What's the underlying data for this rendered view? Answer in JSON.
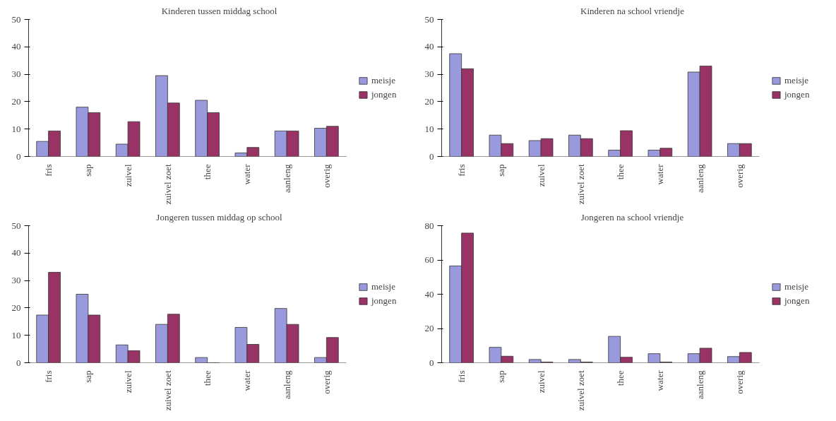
{
  "chart_data": [
    {
      "type": "bar",
      "title": "Kinderen tussen middag school",
      "categories": [
        "fris",
        "sap",
        "zuivel",
        "zuivel zoet",
        "thee",
        "water",
        "aanleng",
        "overig"
      ],
      "ylim": [
        0,
        50
      ],
      "yticks": [
        0,
        10,
        20,
        30,
        40,
        50
      ],
      "legend": "right",
      "grid": false,
      "series": [
        {
          "name": "meisje",
          "color": "#9999dd",
          "values": [
            5.5,
            18,
            4.5,
            29.5,
            20.5,
            1.3,
            9.3,
            10.3
          ]
        },
        {
          "name": "jongen",
          "color": "#993366",
          "values": [
            9.3,
            16,
            12.7,
            19.5,
            16,
            3.3,
            9.3,
            11
          ]
        }
      ]
    },
    {
      "type": "bar",
      "title": "Kinderen na school vriendje",
      "categories": [
        "fris",
        "sap",
        "zuivel",
        "zuivel zoet",
        "thee",
        "water",
        "aanleng",
        "overig"
      ],
      "ylim": [
        0,
        50
      ],
      "yticks": [
        0,
        10,
        20,
        30,
        40,
        50
      ],
      "legend": "right",
      "grid": false,
      "series": [
        {
          "name": "meisje",
          "color": "#9999dd",
          "values": [
            37.5,
            7.8,
            5.8,
            7.8,
            2.3,
            2.3,
            30.8,
            4.7
          ]
        },
        {
          "name": "jongen",
          "color": "#993366",
          "values": [
            32,
            4.7,
            6.5,
            6.5,
            9.4,
            3,
            33,
            4.7
          ]
        }
      ]
    },
    {
      "type": "bar",
      "title": "Jongeren tussen middag op school",
      "categories": [
        "fris",
        "sap",
        "zuivel",
        "zuivel zoet",
        "thee",
        "water",
        "aanleng",
        "overig"
      ],
      "ylim": [
        0,
        50
      ],
      "yticks": [
        0,
        10,
        20,
        30,
        40,
        50
      ],
      "legend": "right",
      "grid": false,
      "series": [
        {
          "name": "meisje",
          "color": "#9999dd",
          "values": [
            17.4,
            25,
            6.5,
            14,
            1.9,
            12.9,
            19.8,
            1.9
          ]
        },
        {
          "name": "jongen",
          "color": "#993366",
          "values": [
            33,
            17.4,
            4.4,
            17.7,
            0,
            6.7,
            14,
            9.2
          ]
        }
      ]
    },
    {
      "type": "bar",
      "title": "Jongeren na school vriendje",
      "categories": [
        "fris",
        "sap",
        "zuivel",
        "zuivel zoet",
        "thee",
        "water",
        "aanleng",
        "overig"
      ],
      "ylim": [
        0,
        80
      ],
      "yticks": [
        0,
        20,
        40,
        60,
        80
      ],
      "legend": "right",
      "grid": false,
      "series": [
        {
          "name": "meisje",
          "color": "#9999dd",
          "values": [
            56.5,
            9,
            1.9,
            1.9,
            15.4,
            5.3,
            5.3,
            3.6
          ]
        },
        {
          "name": "jongen",
          "color": "#993366",
          "values": [
            75.7,
            3.8,
            0.4,
            0.4,
            3.2,
            0.4,
            8.5,
            6
          ]
        }
      ]
    }
  ]
}
